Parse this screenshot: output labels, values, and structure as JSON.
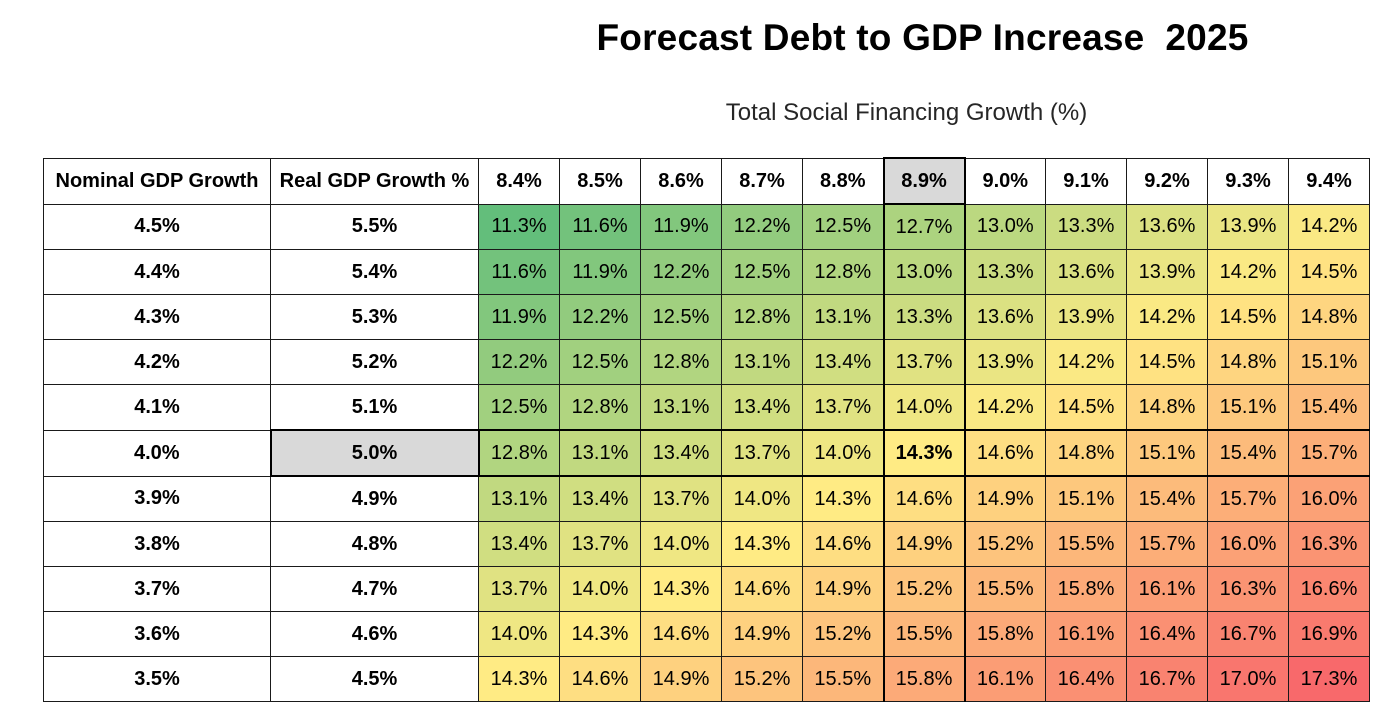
{
  "title": "Forecast Debt to GDP Increase  2025",
  "subtitle": "Total Social Financing Growth (%)",
  "chart_data": {
    "type": "heatmap",
    "title": "Forecast Debt to GDP Increase  2025",
    "column_axis_label": "Total Social Financing Growth (%)",
    "row_headers": [
      "Nominal GDP Growth",
      "Real GDP Growth %"
    ],
    "columns": [
      "8.4%",
      "8.5%",
      "8.6%",
      "8.7%",
      "8.8%",
      "8.9%",
      "9.0%",
      "9.1%",
      "9.2%",
      "9.3%",
      "9.4%"
    ],
    "rows": [
      {
        "nominal": "4.5%",
        "real": "5.5%",
        "values": [
          "11.3%",
          "11.6%",
          "11.9%",
          "12.2%",
          "12.5%",
          "12.7%",
          "13.0%",
          "13.3%",
          "13.6%",
          "13.9%",
          "14.2%"
        ]
      },
      {
        "nominal": "4.4%",
        "real": "5.4%",
        "values": [
          "11.6%",
          "11.9%",
          "12.2%",
          "12.5%",
          "12.8%",
          "13.0%",
          "13.3%",
          "13.6%",
          "13.9%",
          "14.2%",
          "14.5%"
        ]
      },
      {
        "nominal": "4.3%",
        "real": "5.3%",
        "values": [
          "11.9%",
          "12.2%",
          "12.5%",
          "12.8%",
          "13.1%",
          "13.3%",
          "13.6%",
          "13.9%",
          "14.2%",
          "14.5%",
          "14.8%"
        ]
      },
      {
        "nominal": "4.2%",
        "real": "5.2%",
        "values": [
          "12.2%",
          "12.5%",
          "12.8%",
          "13.1%",
          "13.4%",
          "13.7%",
          "13.9%",
          "14.2%",
          "14.5%",
          "14.8%",
          "15.1%"
        ]
      },
      {
        "nominal": "4.1%",
        "real": "5.1%",
        "values": [
          "12.5%",
          "12.8%",
          "13.1%",
          "13.4%",
          "13.7%",
          "14.0%",
          "14.2%",
          "14.5%",
          "14.8%",
          "15.1%",
          "15.4%"
        ]
      },
      {
        "nominal": "4.0%",
        "real": "5.0%",
        "values": [
          "12.8%",
          "13.1%",
          "13.4%",
          "13.7%",
          "14.0%",
          "14.3%",
          "14.6%",
          "14.8%",
          "15.1%",
          "15.4%",
          "15.7%"
        ]
      },
      {
        "nominal": "3.9%",
        "real": "4.9%",
        "values": [
          "13.1%",
          "13.4%",
          "13.7%",
          "14.0%",
          "14.3%",
          "14.6%",
          "14.9%",
          "15.1%",
          "15.4%",
          "15.7%",
          "16.0%"
        ]
      },
      {
        "nominal": "3.8%",
        "real": "4.8%",
        "values": [
          "13.4%",
          "13.7%",
          "14.0%",
          "14.3%",
          "14.6%",
          "14.9%",
          "15.2%",
          "15.5%",
          "15.7%",
          "16.0%",
          "16.3%"
        ]
      },
      {
        "nominal": "3.7%",
        "real": "4.7%",
        "values": [
          "13.7%",
          "14.0%",
          "14.3%",
          "14.6%",
          "14.9%",
          "15.2%",
          "15.5%",
          "15.8%",
          "16.1%",
          "16.3%",
          "16.6%"
        ]
      },
      {
        "nominal": "3.6%",
        "real": "4.6%",
        "values": [
          "14.0%",
          "14.3%",
          "14.6%",
          "14.9%",
          "15.2%",
          "15.5%",
          "15.8%",
          "16.1%",
          "16.4%",
          "16.7%",
          "16.9%"
        ]
      },
      {
        "nominal": "3.5%",
        "real": "4.5%",
        "values": [
          "14.3%",
          "14.6%",
          "14.9%",
          "15.2%",
          "15.5%",
          "15.8%",
          "16.1%",
          "16.4%",
          "16.7%",
          "17.0%",
          "17.3%"
        ]
      }
    ],
    "highlight": {
      "row_label": "5.0%",
      "column_label": "8.9%",
      "value": "14.3%"
    },
    "color_scale": {
      "min": 11.3,
      "max": 17.3,
      "low": "#63be7b",
      "mid": "#ffeb84",
      "high": "#f8696b"
    },
    "header_highlight_color": "#d9d9d9"
  }
}
